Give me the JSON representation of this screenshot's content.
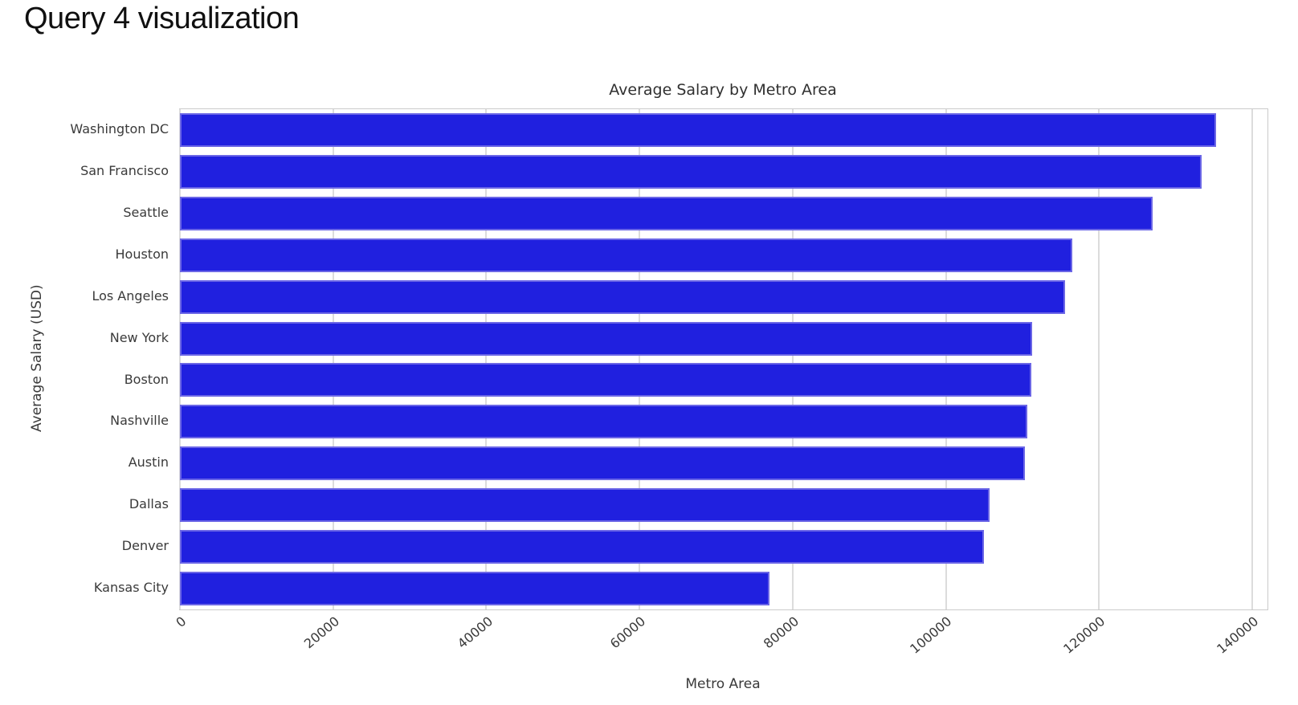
{
  "page": {
    "title": "Query 4 visualization"
  },
  "chart_data": {
    "type": "bar",
    "orientation": "horizontal",
    "title": "Average Salary by Metro Area",
    "xlabel": "Metro Area",
    "ylabel": "Average Salary (USD)",
    "categories": [
      "Washington DC",
      "San Francisco",
      "Seattle",
      "Houston",
      "Los Angeles",
      "New York",
      "Boston",
      "Nashville",
      "Austin",
      "Dallas",
      "Denver",
      "Kansas City"
    ],
    "values": [
      135300,
      133400,
      127000,
      116500,
      115600,
      111300,
      111200,
      110600,
      110300,
      105700,
      105000,
      77000
    ],
    "xlim": [
      0,
      142000
    ],
    "xticks": [
      0,
      20000,
      40000,
      60000,
      80000,
      100000,
      120000,
      140000
    ],
    "xtick_labels": [
      "0",
      "20000",
      "40000",
      "60000",
      "80000",
      "100000",
      "120000",
      "140000"
    ],
    "xtick_rotation_deg": 40,
    "grid": "vertical",
    "legend": "none",
    "colors": {
      "background": "#ffffff",
      "bar_fill": "#2020df",
      "bar_edge": "#6b66e6",
      "gridline": "#dcdcdc",
      "spine": "#cbcbcb",
      "title_text": "#303030",
      "tick_text": "#3a3a3a",
      "heading_text": "#101010"
    }
  }
}
